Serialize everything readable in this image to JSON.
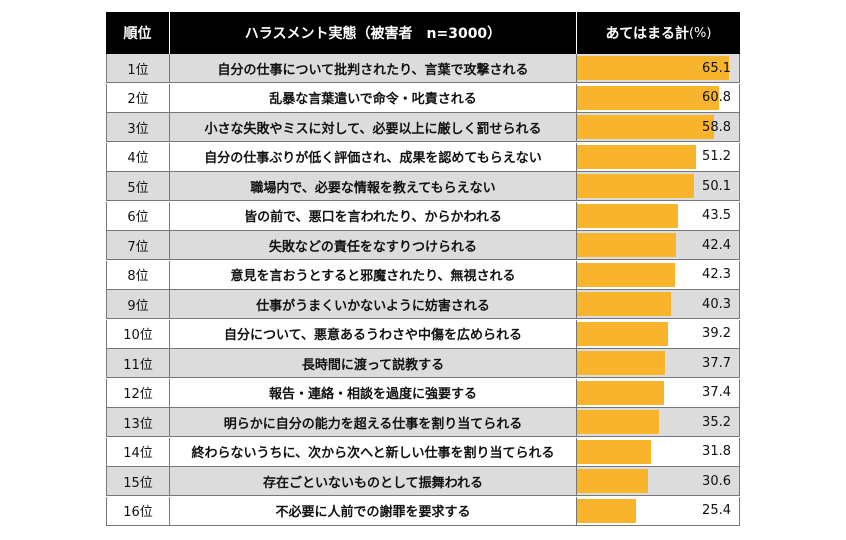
{
  "header": {
    "rank": "順位",
    "item": "ハラスメント実態（被害者　n=3000）",
    "value": "あてはまる計",
    "unit": "(%)"
  },
  "chart_data": {
    "type": "bar",
    "orientation": "horizontal",
    "xlim": [
      0,
      70
    ],
    "rows": [
      {
        "rank": "1位",
        "item": "自分の仕事について批判されたり、言葉で攻撃される",
        "value": 65.1
      },
      {
        "rank": "2位",
        "item": "乱暴な言葉遣いで命令・叱責される",
        "value": 60.8
      },
      {
        "rank": "3位",
        "item": "小さな失敗やミスに対して、必要以上に厳しく罰せられる",
        "value": 58.8
      },
      {
        "rank": "4位",
        "item": "自分の仕事ぶりが低く評価され、成果を認めてもらえない",
        "value": 51.2
      },
      {
        "rank": "5位",
        "item": "職場内で、必要な情報を教えてもらえない",
        "value": 50.1
      },
      {
        "rank": "6位",
        "item": "皆の前で、悪口を言われたり、からかわれる",
        "value": 43.5
      },
      {
        "rank": "7位",
        "item": "失敗などの責任をなすりつけられる",
        "value": 42.4
      },
      {
        "rank": "8位",
        "item": "意見を言おうとすると邪魔されたり、無視される",
        "value": 42.3
      },
      {
        "rank": "9位",
        "item": "仕事がうまくいかないように妨害される",
        "value": 40.3
      },
      {
        "rank": "10位",
        "item": "自分について、悪意あるうわさや中傷を広められる",
        "value": 39.2
      },
      {
        "rank": "11位",
        "item": "長時間に渡って説教する",
        "value": 37.7
      },
      {
        "rank": "12位",
        "item": "報告・連絡・相談を過度に強要する",
        "value": 37.4
      },
      {
        "rank": "13位",
        "item": "明らかに自分の能力を超える仕事を割り当てられる",
        "value": 35.2
      },
      {
        "rank": "14位",
        "item": "終わらないうちに、次から次へと新しい仕事を割り当てられる",
        "value": 31.8
      },
      {
        "rank": "15位",
        "item": "存在ごといないものとして振舞われる",
        "value": 30.6
      },
      {
        "rank": "16位",
        "item": "不必要に人前での謝罪を要求する",
        "value": 25.4
      }
    ]
  },
  "colors": {
    "bar": "#f9b42d",
    "header_bg": "#000000",
    "row_alt": "#dcdcdc"
  }
}
